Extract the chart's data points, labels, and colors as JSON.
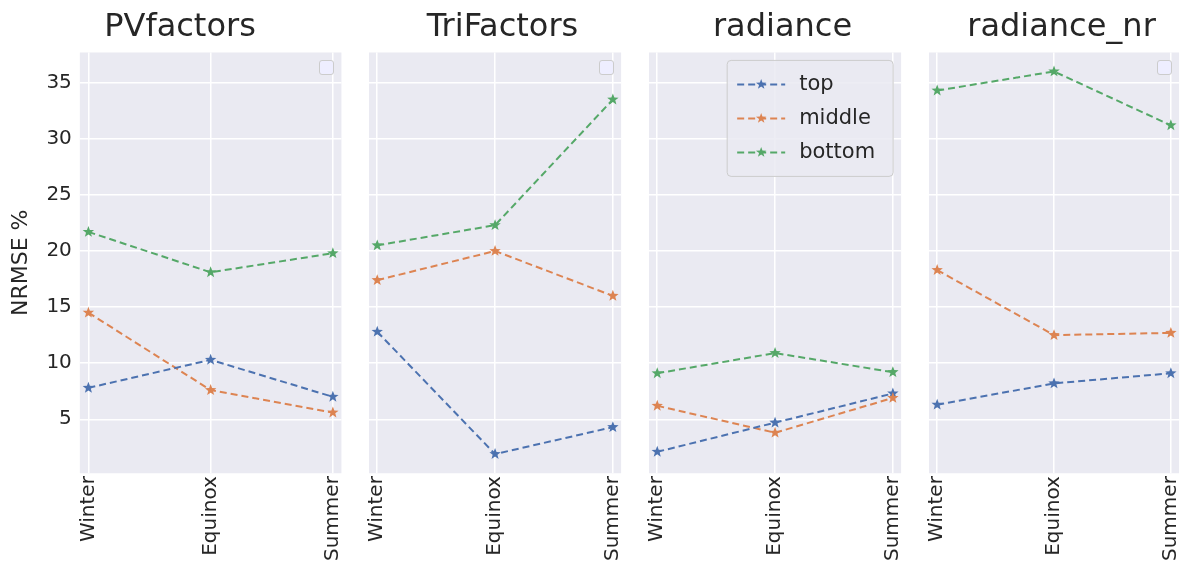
{
  "chart_data": [
    {
      "type": "line",
      "title": "PVfactors",
      "ylabel": "NRMSE %",
      "categories": [
        "Winter",
        "Equinox",
        "Summer"
      ],
      "ylim": [
        0.2,
        37.7
      ],
      "yticks": [
        5,
        10,
        15,
        20,
        25,
        30,
        35
      ],
      "grid": true,
      "legend": false,
      "marker": "star",
      "line_style": "dashed",
      "series": [
        {
          "color": "#4c72b0",
          "values": [
            7.8,
            10.3,
            7.0
          ]
        },
        {
          "color": "#dd8452",
          "values": [
            14.5,
            7.6,
            5.6
          ]
        },
        {
          "color": "#55a868",
          "values": [
            21.7,
            18.1,
            19.8
          ]
        }
      ]
    },
    {
      "type": "line",
      "title": "TriFactors",
      "categories": [
        "Winter",
        "Equinox",
        "Summer"
      ],
      "ylim": [
        0.2,
        37.7
      ],
      "yticks": [
        5,
        10,
        15,
        20,
        25,
        30,
        35
      ],
      "tick_labels": "x",
      "grid": true,
      "legend": false,
      "marker": "star",
      "line_style": "dashed",
      "series": [
        {
          "color": "#4c72b0",
          "values": [
            12.8,
            1.9,
            4.3
          ]
        },
        {
          "color": "#dd8452",
          "values": [
            17.4,
            20.0,
            16.0
          ]
        },
        {
          "color": "#55a868",
          "values": [
            20.5,
            22.3,
            33.5
          ]
        }
      ]
    },
    {
      "type": "line",
      "title": "radiance",
      "categories": [
        "Winter",
        "Equinox",
        "Summer"
      ],
      "ylim": [
        0.2,
        37.7
      ],
      "yticks": [
        5,
        10,
        15,
        20,
        25,
        30,
        35
      ],
      "tick_labels": "x",
      "grid": true,
      "legend": "top right",
      "marker": "star",
      "line_style": "dashed",
      "series": [
        {
          "name": "top",
          "color": "#4c72b0",
          "values": [
            2.1,
            4.7,
            7.3
          ]
        },
        {
          "name": "middle",
          "color": "#dd8452",
          "values": [
            6.2,
            3.8,
            6.9
          ]
        },
        {
          "name": "bottom",
          "color": "#55a868",
          "values": [
            9.1,
            10.9,
            9.2
          ]
        }
      ]
    },
    {
      "type": "line",
      "title": "radiance_nr",
      "categories": [
        "Winter",
        "Equinox",
        "Summer"
      ],
      "ylim": [
        0.2,
        37.7
      ],
      "yticks": [
        5,
        10,
        15,
        20,
        25,
        30,
        35
      ],
      "tick_labels": "x",
      "grid": true,
      "legend": false,
      "marker": "star",
      "line_style": "dashed",
      "series": [
        {
          "color": "#4c72b0",
          "values": [
            6.3,
            8.2,
            9.1
          ]
        },
        {
          "color": "#dd8452",
          "values": [
            18.3,
            12.5,
            12.7
          ]
        },
        {
          "color": "#55a868",
          "values": [
            34.3,
            36.0,
            31.2
          ]
        }
      ]
    }
  ]
}
